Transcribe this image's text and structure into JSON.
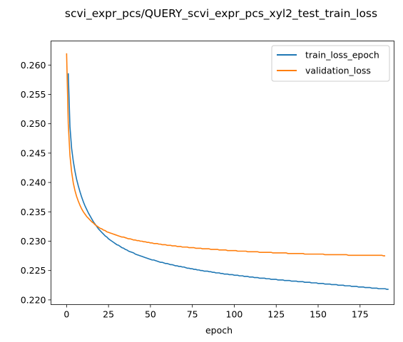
{
  "chart_data": {
    "type": "line",
    "title": "scvi_expr_pcs/QUERY_scvi_expr_pcs_xyl2_test_train_loss",
    "xlabel": "epoch",
    "ylabel": "",
    "xlim": [
      -9.3,
      195.3
    ],
    "ylim": [
      0.2192,
      0.2641
    ],
    "x_ticks": [
      0,
      25,
      50,
      75,
      100,
      125,
      150,
      175
    ],
    "y_ticks": [
      0.22,
      0.225,
      0.23,
      0.235,
      0.24,
      0.245,
      0.25,
      0.255,
      0.26
    ],
    "y_tick_labels": [
      "0.220",
      "0.225",
      "0.230",
      "0.235",
      "0.240",
      "0.245",
      "0.250",
      "0.255",
      "0.260"
    ],
    "grid": false,
    "legend_position": "upper right",
    "x_start": 0,
    "series": [
      {
        "name": "train_loss_epoch",
        "color": "#1f77b4",
        "values": [
          null,
          0.2586,
          0.2495,
          0.2458,
          0.2436,
          0.2419,
          0.2405,
          0.2394,
          0.2384,
          0.2375,
          0.2367,
          0.236,
          0.2354,
          0.2348,
          0.2343,
          0.2338,
          0.2333,
          0.2329,
          0.2325,
          0.2321,
          0.2318,
          0.2315,
          0.2312,
          0.2309,
          0.2307,
          0.2304,
          0.2302,
          0.23,
          0.2298,
          0.2296,
          0.2294,
          0.2293,
          0.2291,
          0.2289,
          0.2288,
          0.2286,
          0.2285,
          0.2283,
          0.2282,
          0.2281,
          0.228,
          0.2278,
          0.2277,
          0.2276,
          0.2275,
          0.2274,
          0.2273,
          0.2272,
          0.2271,
          0.227,
          0.2269,
          0.2268,
          0.2268,
          0.2267,
          0.2266,
          0.2265,
          0.2264,
          0.2264,
          0.2263,
          0.2262,
          0.2262,
          0.2261,
          0.226,
          0.226,
          0.2259,
          0.2258,
          0.2258,
          0.2257,
          0.2257,
          0.2256,
          0.2256,
          0.2255,
          0.2254,
          0.2254,
          0.2253,
          0.2253,
          0.2252,
          0.2252,
          0.2251,
          0.2251,
          0.225,
          0.225,
          0.2249,
          0.2249,
          0.2249,
          0.2248,
          0.2248,
          0.2247,
          0.2247,
          0.2246,
          0.2246,
          0.2246,
          0.2245,
          0.2245,
          0.2244,
          0.2244,
          0.2244,
          0.2243,
          0.2243,
          0.2243,
          0.2242,
          0.2242,
          0.2242,
          0.2241,
          0.2241,
          0.2241,
          0.224,
          0.224,
          0.224,
          0.2239,
          0.2239,
          0.2239,
          0.2238,
          0.2238,
          0.2238,
          0.2237,
          0.2237,
          0.2237,
          0.2237,
          0.2236,
          0.2236,
          0.2236,
          0.2235,
          0.2235,
          0.2235,
          0.2235,
          0.2234,
          0.2234,
          0.2234,
          0.2234,
          0.2233,
          0.2233,
          0.2233,
          0.2233,
          0.2232,
          0.2232,
          0.2232,
          0.2232,
          0.2231,
          0.2231,
          0.2231,
          0.2231,
          0.223,
          0.223,
          0.223,
          0.223,
          0.2229,
          0.2229,
          0.2229,
          0.2229,
          0.2228,
          0.2228,
          0.2228,
          0.2228,
          0.2227,
          0.2227,
          0.2227,
          0.2227,
          0.2226,
          0.2226,
          0.2226,
          0.2226,
          0.2225,
          0.2225,
          0.2225,
          0.2225,
          0.2224,
          0.2224,
          0.2224,
          0.2224,
          0.2223,
          0.2223,
          0.2223,
          0.2223,
          0.2222,
          0.2222,
          0.2222,
          0.2222,
          0.2221,
          0.2221,
          0.2221,
          0.2221,
          0.222,
          0.222,
          0.222,
          0.222,
          0.2219,
          0.2219,
          0.2219,
          0.2219,
          0.2219,
          0.2218,
          0.2218
        ]
      },
      {
        "name": "validation_loss",
        "color": "#ff7f0e",
        "values": [
          0.262,
          0.25,
          0.2446,
          0.2418,
          0.2399,
          0.2386,
          0.2376,
          0.2368,
          0.2361,
          0.2355,
          0.235,
          0.2346,
          0.2342,
          0.2339,
          0.2336,
          0.2333,
          0.2331,
          0.2328,
          0.2326,
          0.2324,
          0.2322,
          0.2321,
          0.2319,
          0.2318,
          0.2316,
          0.2315,
          0.2314,
          0.2313,
          0.2312,
          0.2311,
          0.231,
          0.2309,
          0.2308,
          0.2307,
          0.2307,
          0.2306,
          0.2305,
          0.2304,
          0.2304,
          0.2303,
          0.2302,
          0.2302,
          0.2301,
          0.2301,
          0.23,
          0.23,
          0.2299,
          0.2299,
          0.2298,
          0.2298,
          0.2297,
          0.2297,
          0.2296,
          0.2296,
          0.2296,
          0.2295,
          0.2295,
          0.2294,
          0.2294,
          0.2294,
          0.2293,
          0.2293,
          0.2293,
          0.2292,
          0.2292,
          0.2292,
          0.2291,
          0.2291,
          0.2291,
          0.229,
          0.229,
          0.229,
          0.229,
          0.2289,
          0.2289,
          0.2289,
          0.2289,
          0.2288,
          0.2288,
          0.2288,
          0.2288,
          0.2287,
          0.2287,
          0.2287,
          0.2287,
          0.2287,
          0.2286,
          0.2286,
          0.2286,
          0.2286,
          0.2286,
          0.2285,
          0.2285,
          0.2285,
          0.2285,
          0.2285,
          0.2284,
          0.2284,
          0.2284,
          0.2284,
          0.2284,
          0.2284,
          0.2283,
          0.2283,
          0.2283,
          0.2283,
          0.2283,
          0.2283,
          0.2282,
          0.2282,
          0.2282,
          0.2282,
          0.2282,
          0.2282,
          0.2282,
          0.2281,
          0.2281,
          0.2281,
          0.2281,
          0.2281,
          0.2281,
          0.2281,
          0.2281,
          0.228,
          0.228,
          0.228,
          0.228,
          0.228,
          0.228,
          0.228,
          0.228,
          0.228,
          0.2279,
          0.2279,
          0.2279,
          0.2279,
          0.2279,
          0.2279,
          0.2279,
          0.2279,
          0.2279,
          0.2279,
          0.2278,
          0.2278,
          0.2278,
          0.2278,
          0.2278,
          0.2278,
          0.2278,
          0.2278,
          0.2278,
          0.2278,
          0.2278,
          0.2278,
          0.2277,
          0.2277,
          0.2277,
          0.2277,
          0.2277,
          0.2277,
          0.2277,
          0.2277,
          0.2277,
          0.2277,
          0.2277,
          0.2277,
          0.2277,
          0.2277,
          0.2276,
          0.2276,
          0.2276,
          0.2276,
          0.2276,
          0.2276,
          0.2276,
          0.2276,
          0.2276,
          0.2276,
          0.2276,
          0.2276,
          0.2276,
          0.2276,
          0.2276,
          0.2276,
          0.2276,
          0.2276,
          0.2276,
          0.2276,
          0.2276,
          0.2275,
          0.2275
        ]
      }
    ]
  }
}
